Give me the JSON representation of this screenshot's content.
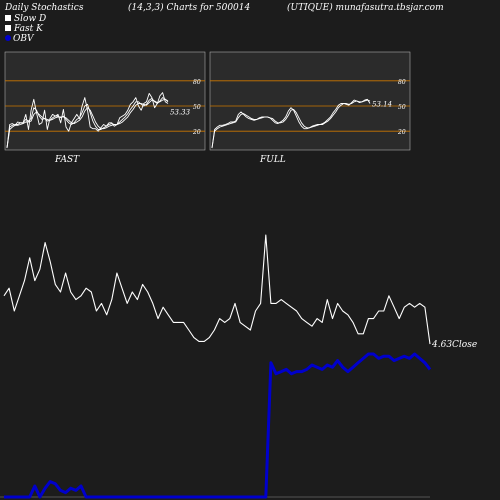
{
  "header": {
    "title": "Daily Stochastics",
    "params": "(14,3,3) Charts for 500014",
    "source": "(UTIQUE) munafasutra.tbsjar.com"
  },
  "legend": [
    {
      "label": "Slow  D",
      "color": "#ffffff"
    },
    {
      "label": "Fast K",
      "color": "#ffffff"
    },
    {
      "label": "OBV",
      "color": "#0000cc"
    }
  ],
  "colors": {
    "background": "#1c1c1c",
    "panel": "#2b2b2b",
    "grid": "#cc7700",
    "line": "#ffffff",
    "obv": "#0000cc"
  },
  "chart_data": [
    {
      "type": "line",
      "title": "FAST",
      "yticks": [
        20,
        50,
        80
      ],
      "ylim": [
        0,
        100
      ],
      "grid": true,
      "last_value_label": "53.33",
      "series": [
        {
          "name": "Fast K",
          "values": [
            0,
            28,
            29,
            27,
            31,
            30,
            30,
            40,
            22,
            45,
            58,
            42,
            28,
            30,
            45,
            22,
            35,
            40,
            38,
            40,
            30,
            46,
            25,
            20,
            30,
            35,
            40,
            35,
            50,
            60,
            45,
            25,
            23,
            23,
            20,
            24,
            28,
            26,
            30,
            30,
            26,
            28,
            36,
            38,
            40,
            45,
            52,
            55,
            60,
            50,
            45,
            53,
            55,
            65,
            60,
            48,
            53,
            62,
            66,
            55,
            53
          ]
        },
        {
          "values": [
            0,
            25,
            27,
            28,
            28,
            30,
            30,
            34,
            32,
            35,
            48,
            45,
            38,
            34,
            35,
            32,
            33,
            36,
            38,
            38,
            36,
            38,
            34,
            30,
            28,
            30,
            34,
            36,
            42,
            50,
            52,
            42,
            32,
            26,
            22,
            22,
            24,
            26,
            28,
            29,
            28,
            28,
            31,
            34,
            37,
            41,
            46,
            50,
            55,
            55,
            52,
            50,
            52,
            57,
            59,
            55,
            53,
            56,
            60,
            58,
            55
          ]
        },
        {
          "values": [
            0,
            22,
            25,
            27,
            27,
            28,
            29,
            31,
            31,
            32,
            40,
            43,
            40,
            37,
            35,
            34,
            33,
            34,
            36,
            37,
            37,
            37,
            36,
            33,
            30,
            29,
            31,
            33,
            37,
            44,
            48,
            45,
            38,
            31,
            26,
            23,
            23,
            24,
            26,
            27,
            28,
            28,
            29,
            31,
            34,
            37,
            42,
            46,
            51,
            53,
            53,
            52,
            51,
            54,
            57,
            56,
            54,
            55,
            57,
            58,
            56
          ]
        }
      ]
    },
    {
      "type": "line",
      "title": "FULL",
      "yticks": [
        20,
        50,
        80
      ],
      "ylim": [
        0,
        100
      ],
      "grid": true,
      "last_value_label": "53.14",
      "series": [
        {
          "values": [
            0,
            22,
            25,
            27,
            27,
            28,
            29,
            31,
            31,
            32,
            40,
            43,
            40,
            37,
            35,
            34,
            33,
            34,
            36,
            37,
            37,
            37,
            36,
            33,
            30,
            29,
            31,
            33,
            37,
            44,
            48,
            45,
            38,
            31,
            26,
            23,
            23,
            24,
            26,
            27,
            28,
            28,
            29,
            31,
            34,
            37,
            42,
            46,
            51,
            53,
            53,
            52,
            51,
            54,
            57,
            56,
            54,
            55,
            57,
            58,
            53
          ]
        },
        {
          "values": [
            0,
            20,
            23,
            25,
            26,
            27,
            28,
            29,
            30,
            31,
            36,
            40,
            41,
            39,
            37,
            35,
            34,
            34,
            35,
            36,
            37,
            37,
            36,
            35,
            32,
            30,
            30,
            31,
            34,
            39,
            45,
            46,
            42,
            36,
            30,
            26,
            24,
            24,
            25,
            26,
            27,
            28,
            28,
            30,
            32,
            35,
            39,
            43,
            48,
            51,
            53,
            53,
            52,
            53,
            55,
            56,
            55,
            55,
            56,
            57,
            56
          ]
        }
      ]
    },
    {
      "type": "line",
      "last_value_label": "4.63",
      "last_value_suffix": "Close",
      "series": [
        {
          "name": "Close",
          "values": [
            5.9,
            6.1,
            5.5,
            5.9,
            6.3,
            6.9,
            6.3,
            6.6,
            7.3,
            6.8,
            6.2,
            6.0,
            6.5,
            6.0,
            5.8,
            5.9,
            6.1,
            6.0,
            5.5,
            5.7,
            5.4,
            5.8,
            6.5,
            6.1,
            5.7,
            6.0,
            5.8,
            6.2,
            6.0,
            5.7,
            5.3,
            5.6,
            5.4,
            5.2,
            5.2,
            5.2,
            5.0,
            4.8,
            4.7,
            4.7,
            4.8,
            5.0,
            5.3,
            5.2,
            5.3,
            5.7,
            5.2,
            5.1,
            5.0,
            5.5,
            5.7,
            7.5,
            5.7,
            5.7,
            5.8,
            5.7,
            5.6,
            5.5,
            5.3,
            5.2,
            5.1,
            5.3,
            5.2,
            5.8,
            5.3,
            5.7,
            5.5,
            5.4,
            5.2,
            4.9,
            4.9,
            5.3,
            5.3,
            5.5,
            5.5,
            5.9,
            5.6,
            5.3,
            5.6,
            5.7,
            5.6,
            5.7,
            5.6,
            4.63
          ]
        },
        {
          "name": "OBV",
          "values": [
            -9.0,
            -9.0,
            -9.0,
            -9.0,
            -9.0,
            -9.0,
            -8.5,
            -9.0,
            -8.6,
            -8.3,
            -8.4,
            -8.7,
            -8.8,
            -8.6,
            -8.7,
            -8.5,
            -9.0,
            -9.0,
            -9.0,
            -9.0,
            -9.0,
            -9.0,
            -9.0,
            -9.0,
            -9.0,
            -9.0,
            -9.0,
            -9.0,
            -9.0,
            -9.0,
            -9.0,
            -9.0,
            -9.0,
            -9.0,
            -9.0,
            -9.0,
            -9.0,
            -9.0,
            -9.0,
            -9.0,
            -9.0,
            -9.0,
            -9.0,
            -9.0,
            -9.0,
            -9.0,
            -9.0,
            -9.0,
            -9.0,
            -9.0,
            -9.0,
            -9.0,
            -2.9,
            -3.4,
            -3.3,
            -3.2,
            -3.4,
            -3.3,
            -3.3,
            -3.2,
            -3.0,
            -3.1,
            -3.2,
            -3.0,
            -3.1,
            -2.8,
            -3.1,
            -3.3,
            -3.1,
            -2.9,
            -2.7,
            -2.5,
            -2.5,
            -2.7,
            -2.6,
            -2.6,
            -2.8,
            -2.7,
            -2.6,
            -2.7,
            -2.5,
            -2.7,
            -2.9,
            -3.2
          ]
        }
      ]
    }
  ]
}
